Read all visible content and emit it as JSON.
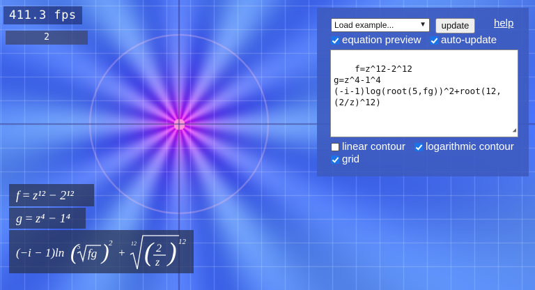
{
  "fps_text": "411.3 fps",
  "counter_value": "2",
  "controls": {
    "example_select": "Load example...",
    "update_label": "update",
    "help_label": "help",
    "equation_preview_label": "equation preview",
    "equation_preview_checked": true,
    "auto_update_label": "auto-update",
    "auto_update_checked": true,
    "linear_contour_label": "linear contour",
    "linear_contour_checked": false,
    "log_contour_label": "logarithmic contour",
    "log_contour_checked": true,
    "grid_label": "grid",
    "grid_checked": true
  },
  "equation_source": "f=z^12-2^12\ng=z^4-1^4\n(-i-1)log(root(5,fg))^2+root(12,(2/z)^12)",
  "rendered_math": {
    "line1": {
      "lhs": "f",
      "rhs": "z¹² − 2¹²"
    },
    "line2": {
      "lhs": "g",
      "rhs": "z⁴ − 1⁴"
    },
    "line3": {
      "prefix": "(−i − 1)ln",
      "root1_index": "5",
      "root1_body": "fg",
      "power1": "2",
      "root2_index": "12",
      "numerator": "2",
      "denominator": "z",
      "power2": "12"
    }
  },
  "colors": {
    "panel": "#3c5abe",
    "accent_magenta": "#ff33cc",
    "field_blue": "#4a6cf0"
  }
}
